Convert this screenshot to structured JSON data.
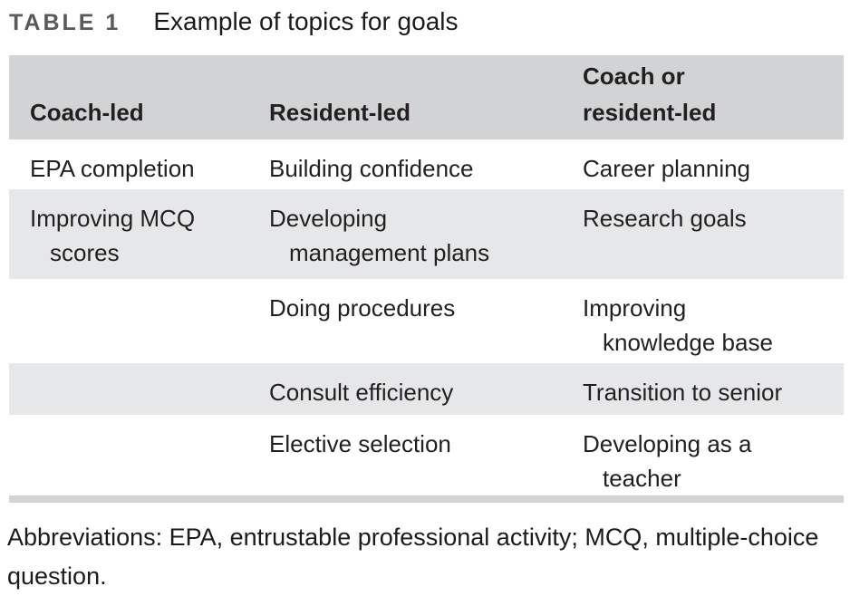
{
  "table": {
    "label": "TABLE 1",
    "caption": "Example of topics for goals",
    "columns": [
      {
        "lines": [
          "Coach-led"
        ]
      },
      {
        "lines": [
          "Resident-led"
        ]
      },
      {
        "lines": [
          "Coach or",
          "resident-led"
        ]
      }
    ],
    "rows": [
      {
        "cells": [
          [
            "EPA completion"
          ],
          [
            "Building confidence"
          ],
          [
            "Career planning"
          ]
        ]
      },
      {
        "cells": [
          [
            "Improving MCQ",
            "scores"
          ],
          [
            "Developing",
            "management plans"
          ],
          [
            "Research goals"
          ]
        ]
      },
      {
        "cells": [
          [],
          [
            "Doing procedures"
          ],
          [
            "Improving",
            "knowledge base"
          ]
        ]
      },
      {
        "cells": [
          [],
          [
            "Consult efficiency"
          ],
          [
            "Transition to senior"
          ]
        ]
      },
      {
        "cells": [
          [],
          [
            "Elective selection"
          ],
          [
            "Developing as a",
            "teacher"
          ]
        ]
      }
    ],
    "footnote": "Abbreviations: EPA, entrustable professional activity; MCQ, multiple-choice question."
  },
  "colors": {
    "header_bg": "#d1d3d4",
    "stripe_bg": "#e6e7e8",
    "label_color": "#58595b",
    "text_color": "#231f20"
  }
}
